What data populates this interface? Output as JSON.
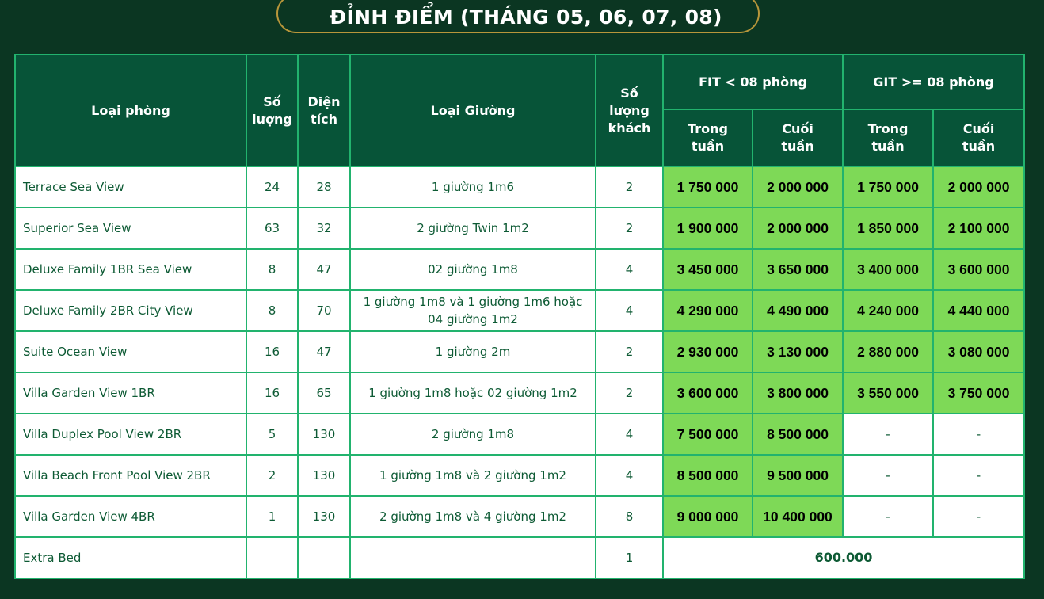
{
  "title": "ĐỈNH ĐIỂM (THÁNG 05, 06, 07, 08)",
  "headers": {
    "room_type": "Loại phòng",
    "quantity": "Số lượng",
    "area": "Diện tích",
    "bed_type": "Loại Giường",
    "guests": "Số lượng khách",
    "fit": "FIT < 08 phòng",
    "git": "GIT >= 08 phòng",
    "weekday": "Trong tuần",
    "weekend": "Cuối tuần"
  },
  "colors": {
    "background": "#0b3622",
    "header": "#075438",
    "border": "#22b36e",
    "highlight": "#7ed957",
    "text": "#0d5a34"
  },
  "rows": [
    {
      "name": "Terrace Sea View",
      "qty": "24",
      "area": "28",
      "bed": "1 giường 1m6",
      "guests": "2",
      "fit_weekday": "1 750 000",
      "fit_weekend": "2 000 000",
      "git_weekday": "1 750 000",
      "git_weekend": "2 000 000"
    },
    {
      "name": "Superior Sea View",
      "qty": "63",
      "area": "32",
      "bed": "2 giường Twin 1m2",
      "guests": "2",
      "fit_weekday": "1 900 000",
      "fit_weekend": "2 000 000",
      "git_weekday": "1 850 000",
      "git_weekend": "2 100 000"
    },
    {
      "name": "Deluxe Family 1BR Sea View",
      "qty": "8",
      "area": "47",
      "bed": "02 giường 1m8",
      "guests": "4",
      "fit_weekday": "3 450 000",
      "fit_weekend": "3 650 000",
      "git_weekday": "3 400 000",
      "git_weekend": "3 600 000"
    },
    {
      "name": "Deluxe Family 2BR City View",
      "qty": "8",
      "area": "70",
      "bed": "1 giường 1m8 và 1 giường 1m6 hoặc 04 giường 1m2",
      "guests": "4",
      "fit_weekday": "4 290 000",
      "fit_weekend": "4 490 000",
      "git_weekday": "4 240 000",
      "git_weekend": "4 440 000"
    },
    {
      "name": "Suite Ocean View",
      "qty": "16",
      "area": "47",
      "bed": "1 giường 2m",
      "guests": "2",
      "fit_weekday": "2 930 000",
      "fit_weekend": "3 130 000",
      "git_weekday": "2 880 000",
      "git_weekend": "3 080 000"
    },
    {
      "name": "Villa Garden View 1BR",
      "qty": "16",
      "area": "65",
      "bed": "1 giường 1m8 hoặc 02 giường 1m2",
      "guests": "2",
      "fit_weekday": "3 600 000",
      "fit_weekend": "3 800 000",
      "git_weekday": "3 550 000",
      "git_weekend": "3 750 000"
    },
    {
      "name": "Villa Duplex Pool View 2BR",
      "qty": "5",
      "area": "130",
      "bed": "2 giường 1m8",
      "guests": "4",
      "fit_weekday": "7 500 000",
      "fit_weekend": "8 500 000",
      "git_weekday": "-",
      "git_weekend": "-"
    },
    {
      "name": "Villa Beach Front Pool View 2BR",
      "qty": "2",
      "area": "130",
      "bed": "1 giường 1m8 và 2 giường 1m2",
      "guests": "4",
      "fit_weekday": "8 500 000",
      "fit_weekend": "9 500 000",
      "git_weekday": "-",
      "git_weekend": "-"
    },
    {
      "name": "Villa Garden View 4BR",
      "qty": "1",
      "area": "130",
      "bed": "2 giường 1m8 và 4 giường 1m2",
      "guests": "8",
      "fit_weekday": "9 000 000",
      "fit_weekend": "10 400 000",
      "git_weekday": "-",
      "git_weekend": "-"
    }
  ],
  "extra_bed": {
    "name": "Extra Bed",
    "guests": "1",
    "price": "600.000"
  }
}
